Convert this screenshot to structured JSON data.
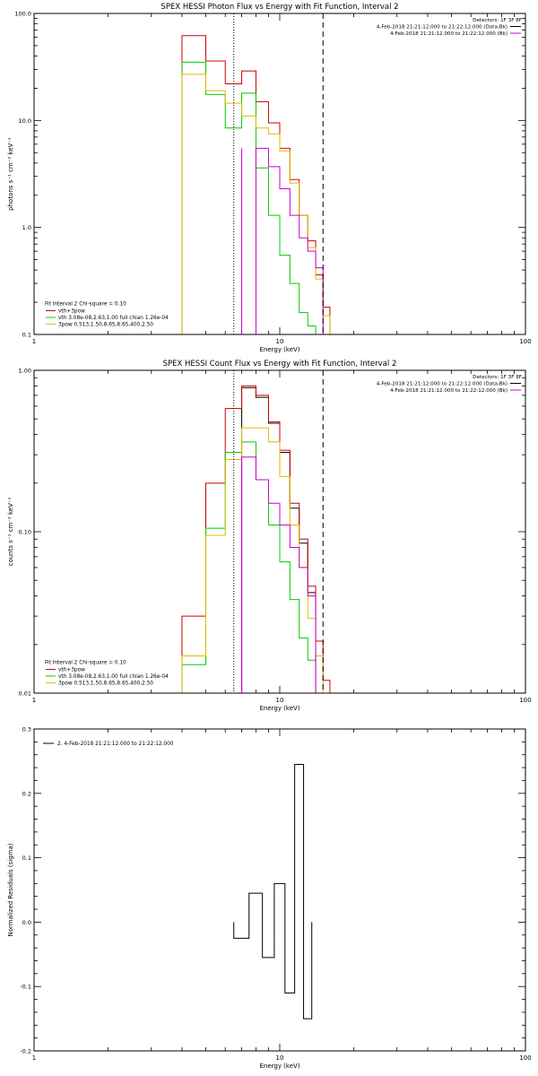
{
  "chart_data": [
    {
      "type": "line",
      "title": "SPEX HESSI Photon Flux vs Energy with Fit Function, Interval 2",
      "xlabel": "Energy (keV)",
      "ylabel": "photons s⁻¹ cm⁻² keV⁻¹",
      "xscale": "log",
      "yscale": "log",
      "xlim": [
        1,
        100
      ],
      "ylim": [
        0.1,
        100
      ],
      "xticks": [
        {
          "v": 1,
          "label": "1"
        },
        {
          "v": 10,
          "label": "10"
        },
        {
          "v": 100,
          "label": "100"
        }
      ],
      "yticks": [
        {
          "v": 0.1,
          "label": "0.1"
        },
        {
          "v": 1,
          "label": "1.0"
        },
        {
          "v": 10,
          "label": "10.0"
        },
        {
          "v": 100,
          "label": "100.0"
        }
      ],
      "edges": [
        4.0,
        5.0,
        6.0,
        7.0,
        8.0,
        9.0,
        10.0,
        11.0,
        12.0,
        13.0,
        14.0,
        15.0,
        16.0
      ],
      "series": [
        {
          "key": "data",
          "color": "#000000",
          "values": [
            null,
            null,
            null,
            null,
            0.1,
            0.1,
            0.1,
            0.1,
            0.1,
            0.1,
            0.1,
            0.1
          ]
        },
        {
          "key": "total",
          "color": "#cc0000",
          "values": [
            62,
            36,
            22,
            29,
            15,
            9.5,
            5.5,
            2.8,
            1.3,
            0.75,
            0.36,
            0.18
          ]
        },
        {
          "key": "thermal",
          "color": "#00cc00",
          "values": [
            35,
            17.5,
            8.5,
            18,
            3.6,
            1.3,
            0.55,
            0.3,
            0.16,
            0.12,
            0.1,
            0.1
          ]
        },
        {
          "key": "nonthermal",
          "color": "#ddbb00",
          "values": [
            27,
            19,
            14.5,
            11,
            8.5,
            7.5,
            5.2,
            2.6,
            1.3,
            0.65,
            0.33,
            0.15
          ]
        },
        {
          "key": "background",
          "color": "#cc00cc",
          "values": [
            null,
            null,
            null,
            0.1,
            5.5,
            3.7,
            2.3,
            1.3,
            0.8,
            0.6,
            0.42,
            0.1
          ]
        }
      ],
      "vlines": [
        {
          "x": 6.5,
          "style": "dotted",
          "color": "#000000"
        },
        {
          "x": 15.0,
          "style": "dashed",
          "color": "#000000"
        },
        {
          "x": 7.0,
          "style": "solid",
          "color": "#cc00cc",
          "from_bottom_to": 5.5
        }
      ],
      "legend_top_right": [
        {
          "text": "Detectors: 1F 3F 8F",
          "color": null
        },
        {
          "text": "4-Feb-2018 21:21:12.000 to 21:22:12.000 (Data-Bk)",
          "color": "#000000"
        },
        {
          "text": "4-Feb-2018 21:21:12.000 to 21:22:12.000 (Bk)",
          "color": "#cc00cc"
        }
      ],
      "legend_bottom_left": {
        "header": "Fit Interval 2   Chi-square = 0.10",
        "items": [
          {
            "text": "vth+3pow",
            "color": "#cc0000"
          },
          {
            "text": "vth 3.08e-08,2.63,1.00  full chian 1.26e-04",
            "color": "#00cc00"
          },
          {
            "text": "3pow 0.513,1.50,8.65,8.65,400,2.50",
            "color": "#ddbb00"
          }
        ]
      }
    },
    {
      "type": "line",
      "title": "SPEX HESSI Count Flux vs Energy with Fit Function, Interval 2",
      "xlabel": "Energy (keV)",
      "ylabel": "counts s⁻¹ cm⁻² keV⁻¹",
      "xscale": "log",
      "yscale": "log",
      "xlim": [
        1,
        100
      ],
      "ylim": [
        0.01,
        1
      ],
      "xticks": [
        {
          "v": 1,
          "label": "1"
        },
        {
          "v": 10,
          "label": "10"
        },
        {
          "v": 100,
          "label": "100"
        }
      ],
      "yticks": [
        {
          "v": 0.01,
          "label": "0.01"
        },
        {
          "v": 0.1,
          "label": "0.10"
        },
        {
          "v": 1,
          "label": "1.00"
        }
      ],
      "edges": [
        4.0,
        5.0,
        6.0,
        7.0,
        8.0,
        9.0,
        10.0,
        11.0,
        12.0,
        13.0,
        14.0,
        15.0,
        16.0,
        17.0
      ],
      "series": [
        {
          "key": "data",
          "color": "#000000",
          "values": [
            null,
            null,
            null,
            0.78,
            0.68,
            0.47,
            0.31,
            0.14,
            0.085,
            0.042,
            0.01,
            0.01,
            null
          ]
        },
        {
          "key": "total",
          "color": "#cc0000",
          "values": [
            0.03,
            0.2,
            0.58,
            0.8,
            0.7,
            0.48,
            0.32,
            0.15,
            0.09,
            0.046,
            0.021,
            0.012,
            0.01
          ]
        },
        {
          "key": "thermal",
          "color": "#00cc00",
          "values": [
            0.015,
            0.105,
            0.31,
            0.36,
            0.21,
            0.11,
            0.065,
            0.038,
            0.022,
            0.016,
            0.01,
            0.01,
            null
          ]
        },
        {
          "key": "nonthermal",
          "color": "#ddbb00",
          "values": [
            0.017,
            0.095,
            0.28,
            0.44,
            0.44,
            0.36,
            0.22,
            0.11,
            0.06,
            0.029,
            0.017,
            0.01,
            null
          ]
        },
        {
          "key": "background",
          "color": "#cc00cc",
          "values": [
            null,
            null,
            null,
            0.29,
            0.21,
            0.15,
            0.11,
            0.08,
            0.06,
            0.04,
            null,
            null,
            null
          ]
        }
      ],
      "vlines": [
        {
          "x": 6.5,
          "style": "dotted",
          "color": "#000000"
        },
        {
          "x": 15.0,
          "style": "dashed",
          "color": "#000000"
        },
        {
          "x": 7.0,
          "style": "solid",
          "color": "#cc00cc",
          "from_bottom_to": 0.29
        }
      ],
      "legend_top_right": [
        {
          "text": "Detectors: 1F 3F 8F",
          "color": null
        },
        {
          "text": "4-Feb-2018 21:21:12.000 to 21:22:12.000 (Data-Bk)",
          "color": "#000000"
        },
        {
          "text": "4-Feb-2018 21:21:12.000 to 21:22:12.000 (Bk)",
          "color": "#cc00cc"
        }
      ],
      "legend_bottom_left": {
        "header": "Fit Interval 2   Chi-square = 0.10",
        "items": [
          {
            "text": "vth+3pow",
            "color": "#cc0000"
          },
          {
            "text": "vth 3.08e-08,2.63,1.00  full chian 1.26e-04",
            "color": "#00cc00"
          },
          {
            "text": "3pow 0.513,1.50,8.65,8.65,400,2.50",
            "color": "#ddbb00"
          }
        ]
      }
    },
    {
      "type": "line",
      "title": "",
      "xlabel": "Energy (keV)",
      "ylabel": "Normalized Residuals (sigma)",
      "xscale": "log",
      "yscale": "linear",
      "xlim": [
        1,
        100
      ],
      "ylim": [
        -0.2,
        0.3
      ],
      "xticks": [
        {
          "v": 1,
          "label": "1"
        },
        {
          "v": 10,
          "label": "10"
        },
        {
          "v": 100,
          "label": "100"
        }
      ],
      "yticks": [
        {
          "v": -0.2,
          "label": "-0.2"
        },
        {
          "v": -0.1,
          "label": "-0.1"
        },
        {
          "v": 0.0,
          "label": "0.0"
        },
        {
          "v": 0.1,
          "label": "0.1"
        },
        {
          "v": 0.2,
          "label": "0.2"
        },
        {
          "v": 0.3,
          "label": "0.3"
        }
      ],
      "edges": [
        6.5,
        7.5,
        8.5,
        9.5,
        10.5,
        11.5,
        12.5,
        13.5
      ],
      "series": [
        {
          "key": "residuals",
          "color": "#000000",
          "values": [
            -0.025,
            0.045,
            -0.055,
            0.06,
            -0.11,
            0.245,
            -0.15
          ]
        }
      ],
      "vlines": [],
      "legend_top_left": [
        {
          "text": "2.  4-Feb-2018 21:21:12.000 to 21:22:12.000",
          "color": "#000000"
        }
      ]
    }
  ]
}
